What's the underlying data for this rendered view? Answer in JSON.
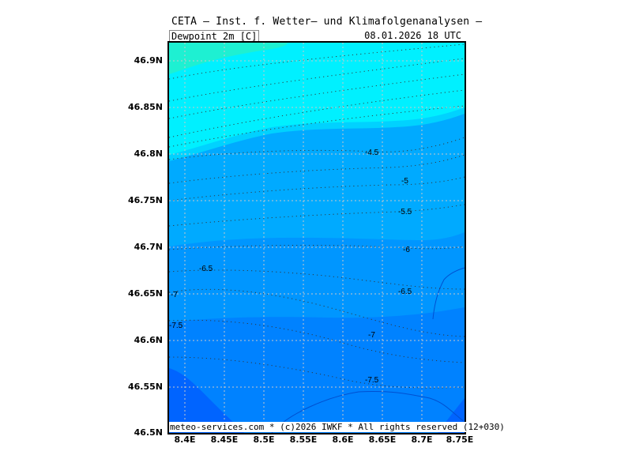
{
  "header": {
    "title": "CETA — Inst. f. Wetter— und Klimafolgenanalysen —",
    "variable": "Dewpoint 2m [C]",
    "datetime": "08.01.2026  18 UTC"
  },
  "footer": {
    "credit": "meteo-services.com * (c)2026 IWKF * All rights reserved (12+030)"
  },
  "axes": {
    "x_ticks": [
      "8.4E",
      "8.45E",
      "8.5E",
      "8.55E",
      "8.6E",
      "8.65E",
      "8.7E",
      "8.75E"
    ],
    "y_ticks": [
      "46.9N",
      "46.85N",
      "46.8N",
      "46.75N",
      "46.7N",
      "46.65N",
      "46.6N",
      "46.55N",
      "46.5N"
    ]
  },
  "contour_labels": [
    "-4.5",
    "-5",
    "-5.5",
    "-6",
    "-6.5",
    "-6.5",
    "-7",
    "-7",
    "-7.5",
    "-7.5"
  ],
  "colors": {
    "band_top": "#1ef0d2",
    "band_2": "#00f0ff",
    "band_3": "#00d2ff",
    "band_4": "#00aaff",
    "band_5": "#0096ff",
    "band_6": "#0082ff",
    "band_7": "#0064ff"
  },
  "chart_data": {
    "type": "heatmap",
    "title": "Dewpoint 2m [C]",
    "xlabel": "",
    "ylabel": "",
    "xlim": [
      8.38,
      8.75
    ],
    "ylim": [
      46.5,
      46.92
    ],
    "grid": true,
    "contour_levels_C": [
      -4.5,
      -5,
      -5.5,
      -6,
      -6.5,
      -7,
      -7.5
    ]
  }
}
